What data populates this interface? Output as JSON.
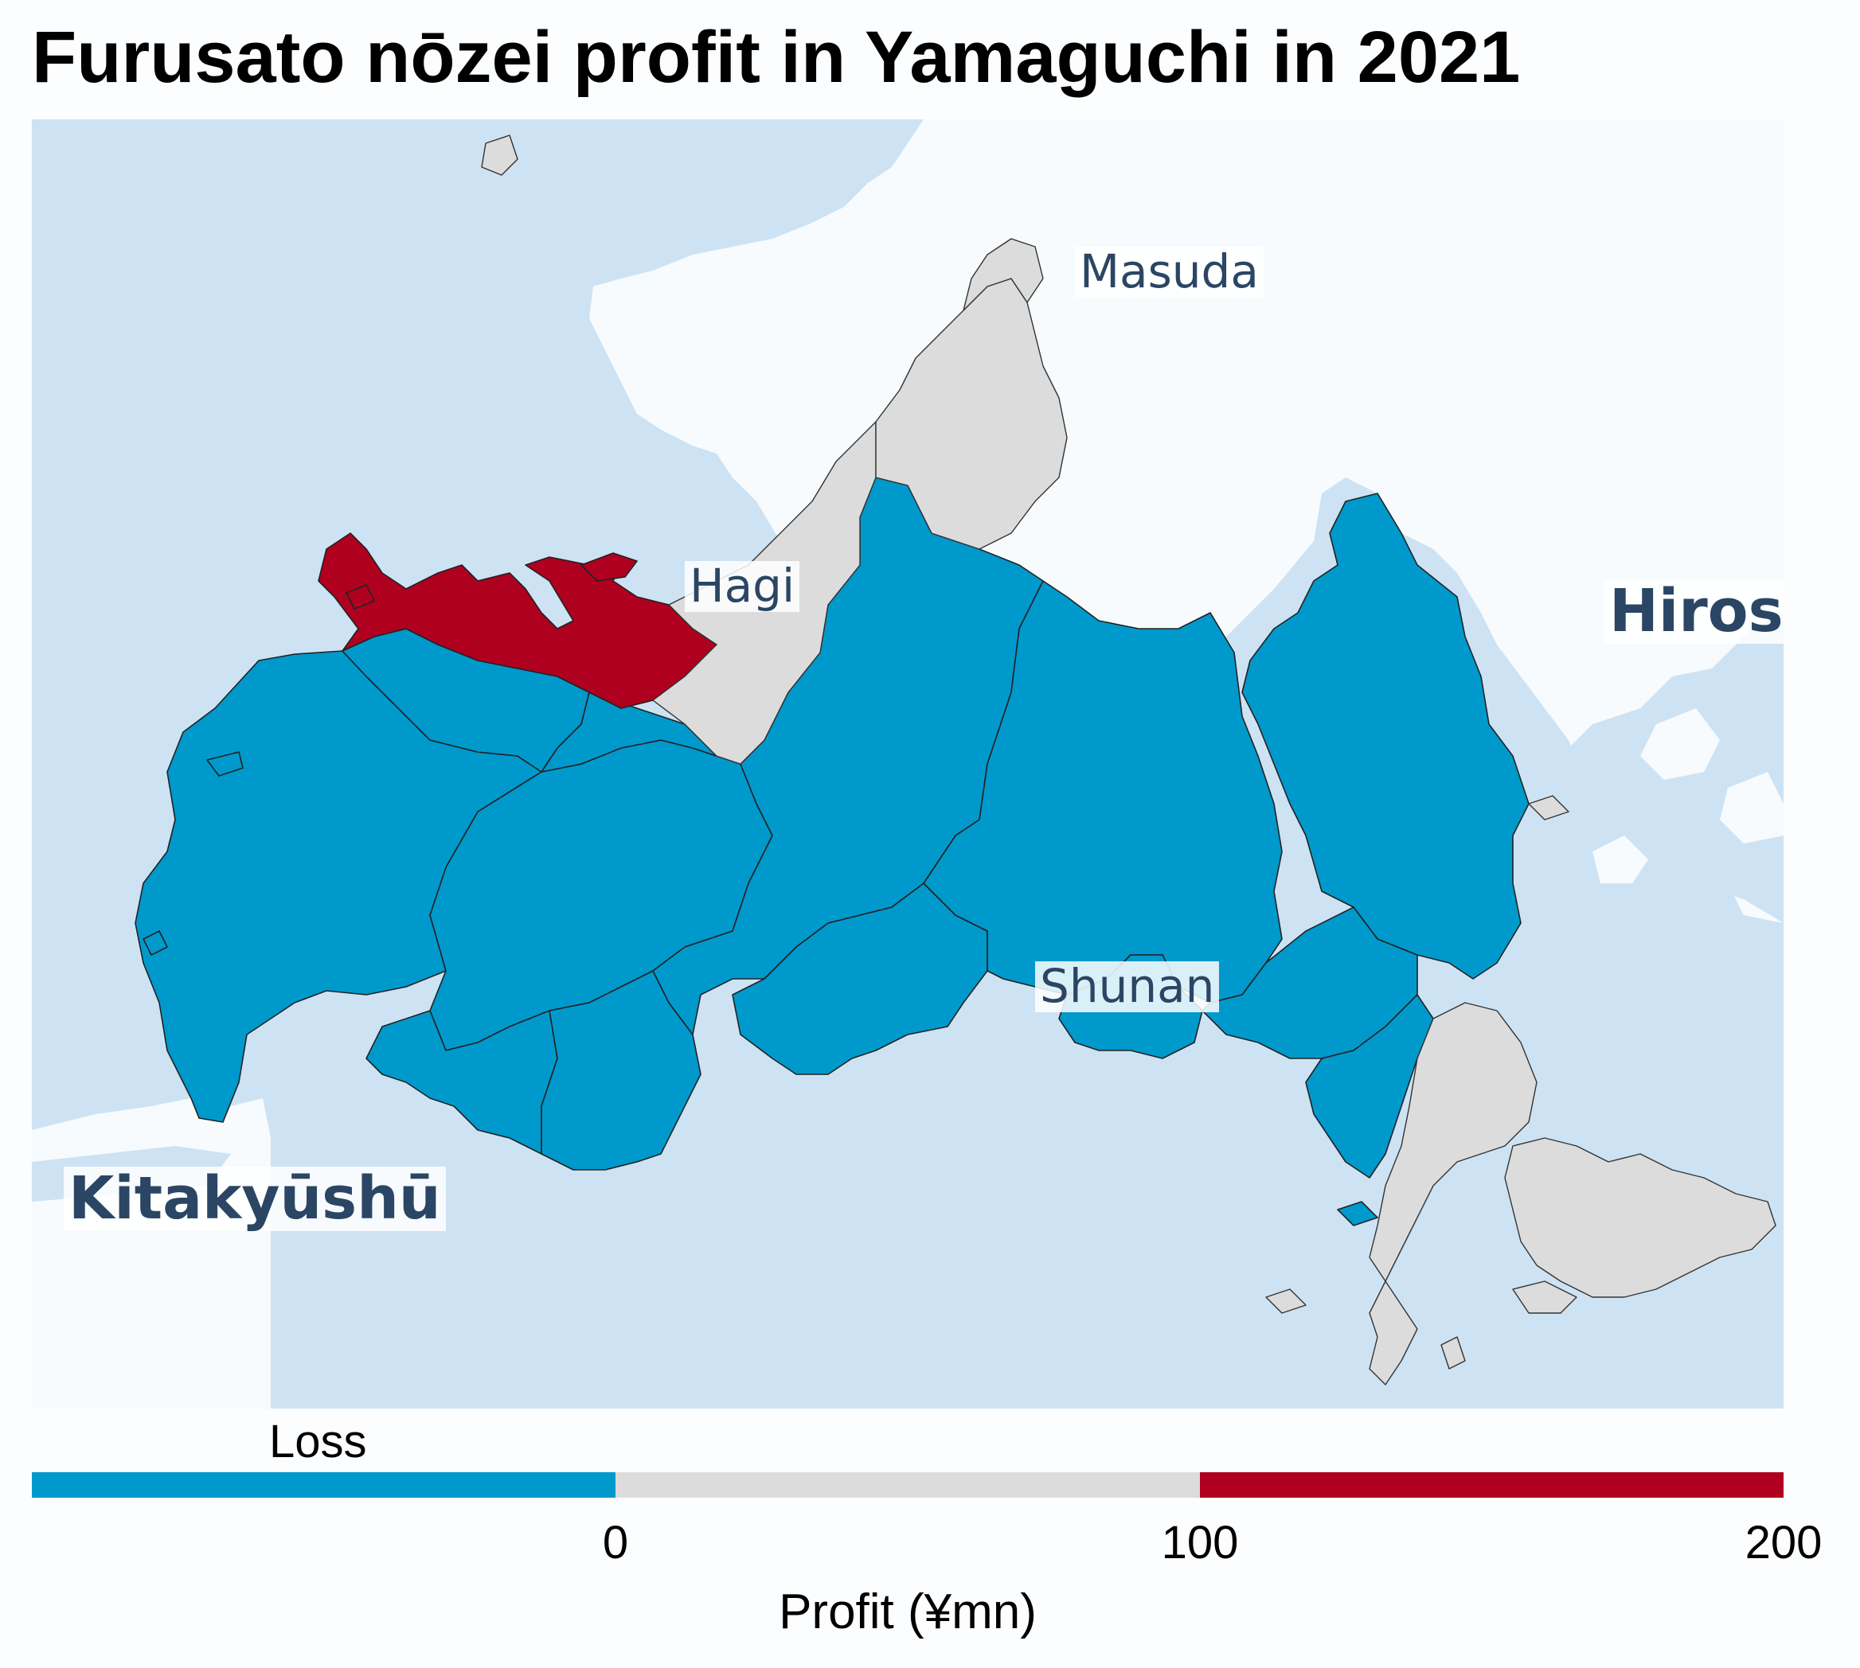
{
  "title": "Furusato nōzei profit in Yamaguchi in 2021",
  "places": {
    "masuda": "Masuda",
    "hagi": "Hagi",
    "hiroshima": "Hirosh",
    "shunan": "Shunan",
    "kitakyushu": "Kitakyūshū"
  },
  "legend": {
    "title": "Profit (¥mn)",
    "loss_label": "Loss",
    "ticks": [
      "0",
      "100",
      "200"
    ],
    "bins": [
      {
        "label": "Loss",
        "color": "#0099cc"
      },
      {
        "label": "0–100",
        "color": "#dcdcdc"
      },
      {
        "label": "100–200",
        "color": "#b00020"
      }
    ]
  },
  "colors": {
    "sea": "#cde3f4",
    "land_outside": "#f7fbfd",
    "loss": "#0099cc",
    "low_profit": "#dcdcdc",
    "high_profit": "#b00020",
    "label_text": "#2b4664"
  }
}
